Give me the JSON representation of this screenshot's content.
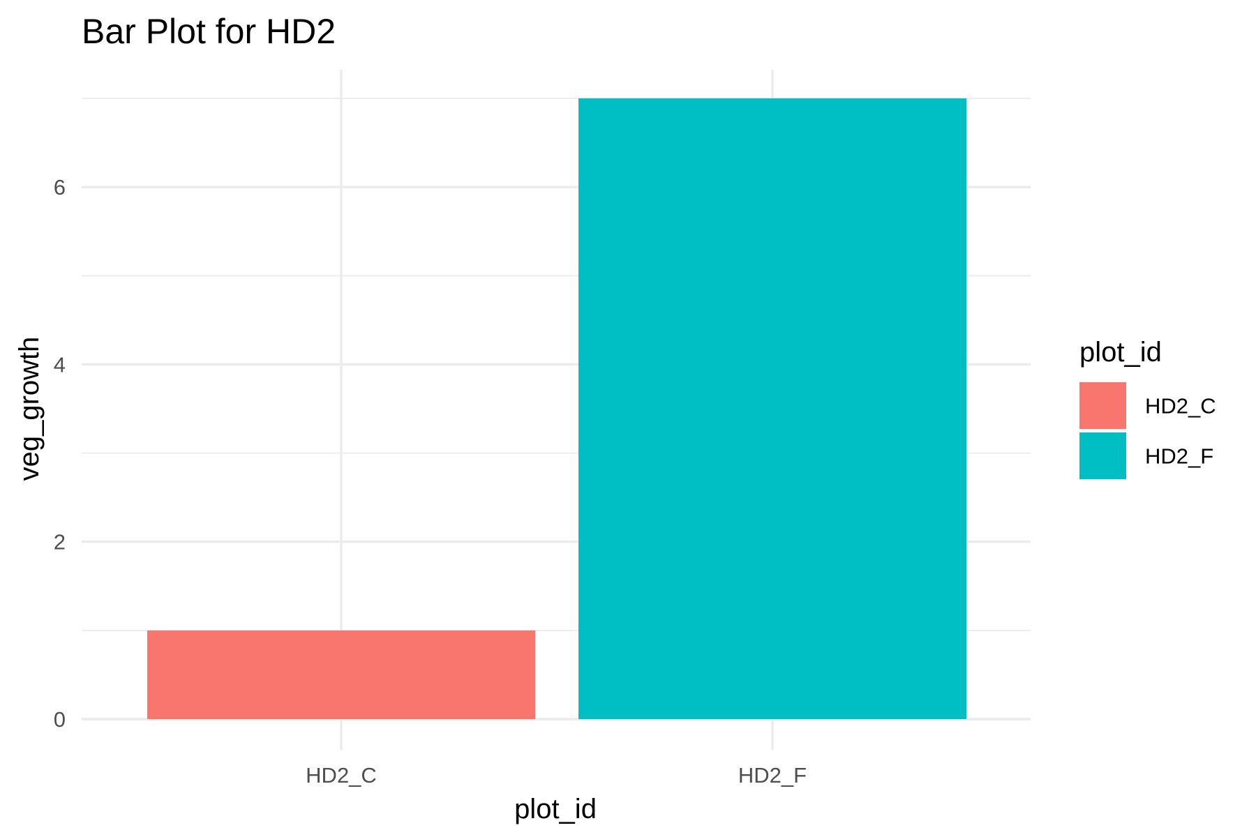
{
  "chart_data": {
    "type": "bar",
    "title": "Bar Plot for HD2",
    "xlabel": "plot_id",
    "ylabel": "veg_growth",
    "categories": [
      "HD2_C",
      "HD2_F"
    ],
    "values": [
      1,
      7
    ],
    "colors": [
      "#f8766d",
      "#00bfc4"
    ],
    "ylim": [
      0,
      7
    ],
    "yticks": [
      0,
      2,
      4,
      6
    ],
    "yminor": [
      1,
      3,
      5,
      7
    ],
    "grid": true,
    "legend": {
      "title": "plot_id",
      "placement": "right",
      "entries": [
        "HD2_C",
        "HD2_F"
      ]
    }
  }
}
